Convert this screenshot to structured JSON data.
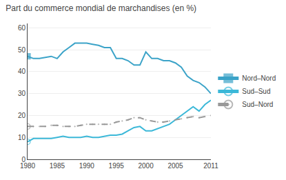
{
  "chart_data": {
    "type": "line",
    "title": "Part du commerce mondial de marchandises (en %)",
    "x": [
      1980,
      1981,
      1982,
      1983,
      1984,
      1985,
      1986,
      1987,
      1988,
      1989,
      1990,
      1991,
      1992,
      1993,
      1994,
      1995,
      1996,
      1997,
      1998,
      1999,
      2000,
      2001,
      2002,
      2003,
      2004,
      2005,
      2006,
      2007,
      2008,
      2009,
      2010,
      2011
    ],
    "series": [
      {
        "name": "Nord–Nord",
        "color": "#3ba3c8",
        "marker": "square",
        "line_style": "solid",
        "values": [
          47,
          46,
          46,
          46.5,
          47,
          46,
          49,
          51,
          53,
          53,
          53,
          52.5,
          52,
          51,
          51,
          46,
          46,
          45,
          43,
          43,
          49,
          46,
          46,
          45,
          45,
          44,
          42,
          38,
          36,
          35,
          33,
          30
        ]
      },
      {
        "name": "Sud–Sud",
        "color": "#3bb8d8",
        "marker": "circle-open",
        "line_style": "solid",
        "values": [
          8,
          9.5,
          9.5,
          9.5,
          9.5,
          10,
          10.5,
          10,
          10,
          10,
          10.5,
          10,
          10,
          10.5,
          11,
          11,
          11.5,
          13,
          14.5,
          15,
          13,
          13,
          14,
          15,
          16,
          18,
          20,
          22,
          24,
          22,
          25,
          27
        ]
      },
      {
        "name": "Sud–Nord",
        "color": "#999999",
        "marker": "circle-dot",
        "line_style": "dashed",
        "values": [
          15,
          15,
          15,
          15,
          15.5,
          15.5,
          15,
          15,
          15,
          15.5,
          16,
          16,
          16,
          16,
          16,
          17,
          17.5,
          18,
          19,
          19,
          18,
          17.5,
          17,
          17,
          17.5,
          18,
          18.5,
          19,
          19.5,
          19,
          19.5,
          20
        ]
      }
    ],
    "xlim": [
      1980,
      2011
    ],
    "xticks": [
      1980,
      1985,
      1990,
      1995,
      2000,
      2005,
      2011
    ],
    "ylim": [
      0,
      62
    ],
    "yticks": [
      0,
      10,
      20,
      30,
      40,
      50,
      60
    ],
    "grid": true,
    "legend": "right"
  }
}
